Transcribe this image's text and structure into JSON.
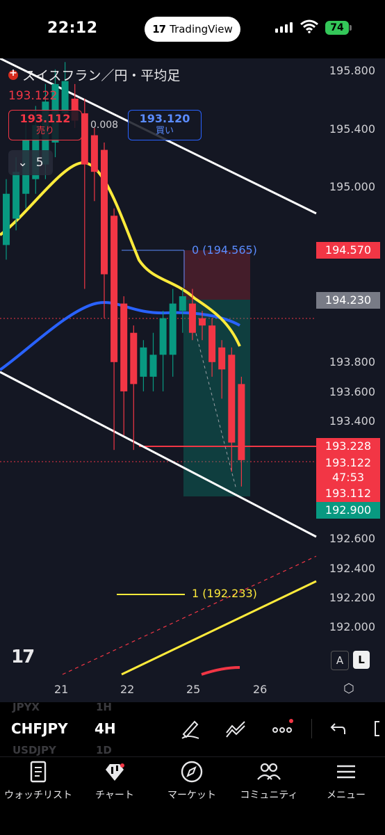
{
  "status_bar": {
    "time": "22:12",
    "app_pill": "TradingView",
    "battery": "74"
  },
  "chart_header": {
    "symbol_title": "スイスフラン／円・平均足",
    "last_price": "193.122",
    "sell": {
      "price": "193.112",
      "label": "売り"
    },
    "spread": "0.008",
    "buy": {
      "price": "193.120",
      "label": "買い"
    },
    "quantity": "5"
  },
  "price_axis": {
    "labels": [
      "195.800",
      "195.400",
      "195.000",
      "193.800",
      "193.600",
      "193.400",
      "192.600",
      "192.400",
      "192.200",
      "192.000"
    ]
  },
  "price_tags": [
    {
      "value": "194.570",
      "color": "#f23645"
    },
    {
      "value": "194.230",
      "color": "#787b86"
    },
    {
      "value": "193.228",
      "color": "#f23645"
    },
    {
      "value": "193.122",
      "color": "#f23645"
    },
    {
      "value": "47:53",
      "color": "#f23645"
    },
    {
      "value": "193.112",
      "color": "#f23645"
    },
    {
      "value": "192.900",
      "color": "#089981"
    }
  ],
  "time_axis": {
    "labels": [
      "21",
      "22",
      "25",
      "26"
    ]
  },
  "fib_labels": {
    "level0": "0 (194.565)",
    "level1": "1 (192.233)"
  },
  "scale_buttons": {
    "auto": "A",
    "log": "L"
  },
  "chart_data": {
    "type": "candlestick",
    "title": "スイスフラン／円・平均足",
    "interval": "4H",
    "ylim": [
      191.85,
      195.95
    ],
    "x_ticks": [
      "21",
      "22",
      "25",
      "26"
    ],
    "colors": {
      "up": "#089981",
      "down": "#f23645",
      "ema_fast": "#ffeb3b",
      "ema_slow": "#2962ff"
    },
    "candles": [
      {
        "o": 194.6,
        "c": 194.95,
        "h": 195.05,
        "l": 194.5
      },
      {
        "o": 194.78,
        "c": 195.1,
        "h": 195.2,
        "l": 194.7
      },
      {
        "o": 194.95,
        "c": 195.32,
        "h": 195.45,
        "l": 194.85
      },
      {
        "o": 195.05,
        "c": 195.42,
        "h": 195.55,
        "l": 194.95
      },
      {
        "o": 195.15,
        "c": 195.58,
        "h": 195.7,
        "l": 195.05
      },
      {
        "o": 195.3,
        "c": 195.7,
        "h": 195.8,
        "l": 195.2
      },
      {
        "o": 195.5,
        "c": 195.72,
        "h": 195.85,
        "l": 195.45
      },
      {
        "o": 195.6,
        "c": 195.45,
        "h": 195.7,
        "l": 195.4
      },
      {
        "o": 195.5,
        "c": 195.15,
        "h": 195.6,
        "l": 194.3
      },
      {
        "o": 195.35,
        "c": 195.1,
        "h": 195.4,
        "l": 194.9
      },
      {
        "o": 195.25,
        "c": 194.4,
        "h": 195.3,
        "l": 194.1
      },
      {
        "o": 194.8,
        "c": 193.8,
        "h": 194.85,
        "l": 193.2
      },
      {
        "o": 194.2,
        "c": 193.6,
        "h": 194.25,
        "l": 193.3
      },
      {
        "o": 194.0,
        "c": 193.65,
        "h": 194.05,
        "l": 193.2
      },
      {
        "o": 193.7,
        "c": 193.9,
        "h": 193.95,
        "l": 193.6
      },
      {
        "o": 193.7,
        "c": 193.85,
        "h": 194.0,
        "l": 193.6
      },
      {
        "o": 193.85,
        "c": 194.1,
        "h": 194.15,
        "l": 193.6
      },
      {
        "o": 193.85,
        "c": 194.2,
        "h": 194.3,
        "l": 193.7
      },
      {
        "o": 194.15,
        "c": 194.25,
        "h": 194.3,
        "l": 194.0
      },
      {
        "o": 194.2,
        "c": 194.0,
        "h": 194.3,
        "l": 193.95
      },
      {
        "o": 194.1,
        "c": 194.05,
        "h": 194.15,
        "l": 193.95
      },
      {
        "o": 194.05,
        "c": 193.8,
        "h": 194.1,
        "l": 193.7
      },
      {
        "o": 193.9,
        "c": 193.75,
        "h": 193.95,
        "l": 193.55
      },
      {
        "o": 193.85,
        "c": 193.25,
        "h": 193.9,
        "l": 193.05
      },
      {
        "o": 193.65,
        "c": 193.13,
        "h": 193.7,
        "l": 192.95
      }
    ]
  },
  "toolbar": {
    "symbol": "CHFJPY",
    "timeframe": "4H",
    "ghost_prev_symbol": "JPYX",
    "ghost_prev_tf": "1H",
    "ghost_next_symbol": "USDJPY",
    "ghost_next_tf": "1D",
    "icons": [
      "draw-icon",
      "indicator-icon",
      "more-icon",
      "undo-icon"
    ]
  },
  "bottom_nav": [
    {
      "label": "ウォッチリスト",
      "icon": "watchlist-icon"
    },
    {
      "label": "チャート",
      "icon": "chart-icon"
    },
    {
      "label": "マーケット",
      "icon": "compass-icon"
    },
    {
      "label": "コミュニティ",
      "icon": "community-icon"
    },
    {
      "label": "メニュー",
      "icon": "menu-icon"
    }
  ]
}
